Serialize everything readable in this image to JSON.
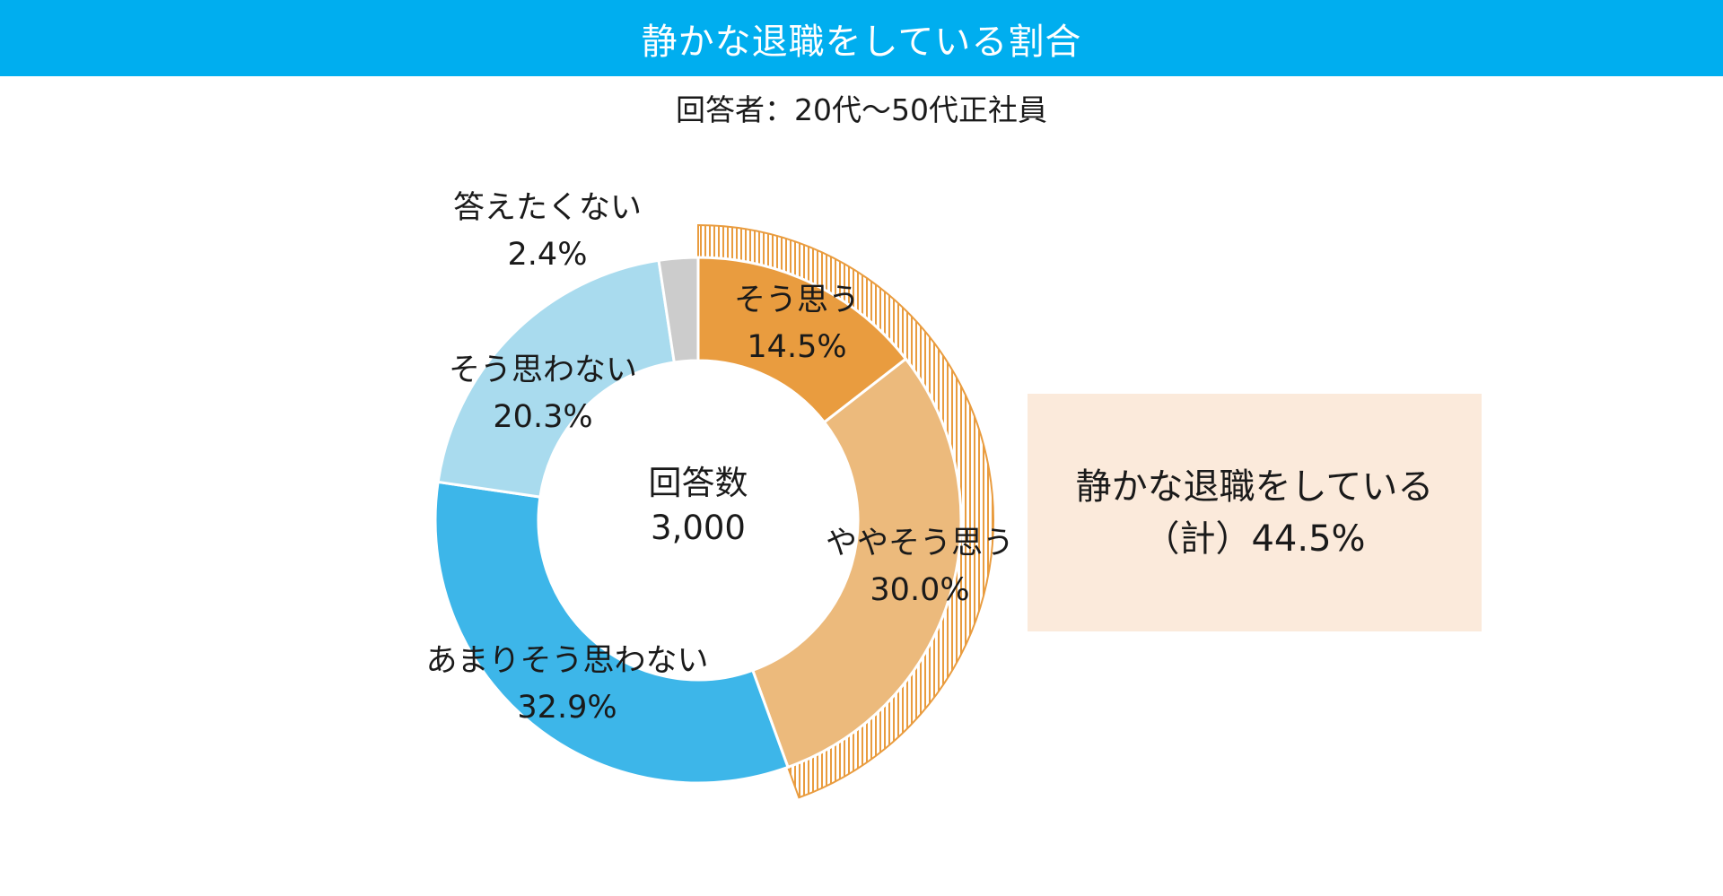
{
  "header": {
    "title": "静かな退職をしている割合",
    "subtitle": "回答者：20代～50代正社員"
  },
  "summary": {
    "line1": "静かな退職をしている",
    "line2": "（計）44.5%"
  },
  "chart_data": {
    "type": "pie",
    "donut": true,
    "title": "静かな退職をしている割合",
    "center_label": "回答数",
    "center_value": "3,000",
    "categories": [
      "そう思う",
      "ややそう思う",
      "あまりそう思わない",
      "そう思わない",
      "答えたくない"
    ],
    "values": [
      14.5,
      30.0,
      32.9,
      20.3,
      2.4
    ],
    "value_labels": [
      "14.5%",
      "30.0%",
      "32.9%",
      "20.3%",
      "2.4%"
    ],
    "colors": [
      "#e99c3f",
      "#ecba7c",
      "#3db6e9",
      "#a9dbee",
      "#cccccc"
    ],
    "highlight_group": {
      "categories": [
        "そう思う",
        "ややそう思う"
      ],
      "total": 44.5,
      "color": "#e99c3f"
    }
  }
}
